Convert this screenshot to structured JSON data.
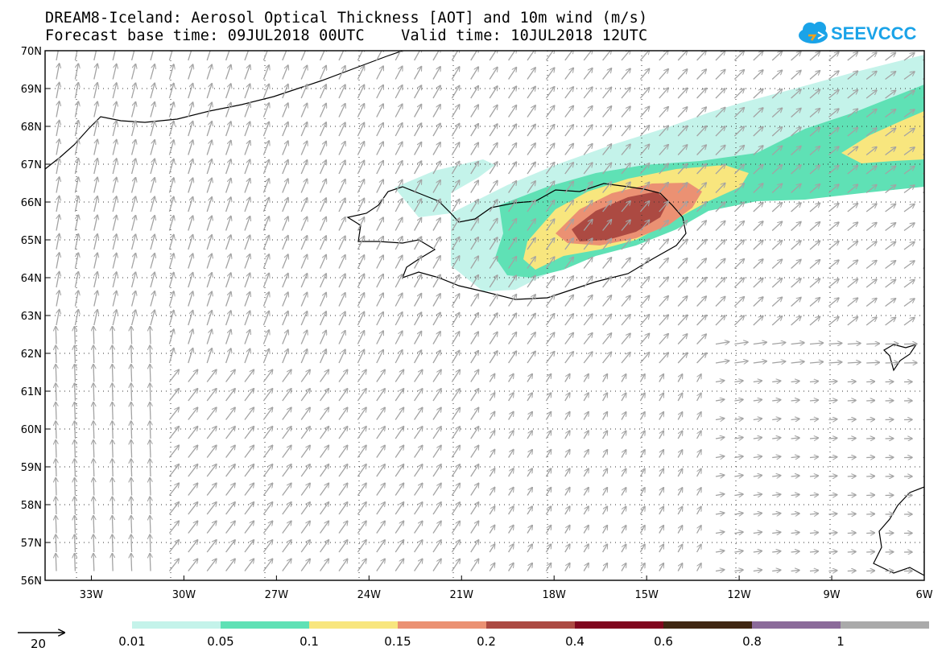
{
  "title": {
    "line1": "DREAM8-Iceland: Aerosol Optical Thickness [AOT] and 10m wind (m/s)",
    "line2": "Forecast base time: 09JUL2018 00UTC    Valid time: 10JUL2018 12UTC"
  },
  "logo": {
    "text": "SEEVCCC",
    "color": "#1aa3e8",
    "icon": "cloud-icon"
  },
  "map": {
    "lon_range": [
      -34.5,
      -6
    ],
    "lat_range": [
      56,
      70
    ],
    "lon_ticks": [
      {
        "value": -33,
        "label": "33W"
      },
      {
        "value": -30,
        "label": "30W"
      },
      {
        "value": -27,
        "label": "27W"
      },
      {
        "value": -24,
        "label": "24W"
      },
      {
        "value": -21,
        "label": "21W"
      },
      {
        "value": -18,
        "label": "18W"
      },
      {
        "value": -15,
        "label": "15W"
      },
      {
        "value": -12,
        "label": "12W"
      },
      {
        "value": -9,
        "label": "9W"
      },
      {
        "value": -6,
        "label": "6W"
      }
    ],
    "lat_ticks": [
      {
        "value": 70,
        "label": "70N"
      },
      {
        "value": 69,
        "label": "69N"
      },
      {
        "value": 68,
        "label": "68N"
      },
      {
        "value": 67,
        "label": "67N"
      },
      {
        "value": 66,
        "label": "66N"
      },
      {
        "value": 65,
        "label": "65N"
      },
      {
        "value": 64,
        "label": "64N"
      },
      {
        "value": 63,
        "label": "63N"
      },
      {
        "value": 62,
        "label": "62N"
      },
      {
        "value": 61,
        "label": "61N"
      },
      {
        "value": 60,
        "label": "60N"
      },
      {
        "value": 59,
        "label": "59N"
      },
      {
        "value": 58,
        "label": "58N"
      },
      {
        "value": 57,
        "label": "57N"
      },
      {
        "value": 56,
        "label": "56N"
      }
    ],
    "grid": "dotted",
    "wind_vector_color": "#a3a3a3"
  },
  "colorbar": {
    "levels": [
      "0.01",
      "0.05",
      "0.1",
      "0.15",
      "0.2",
      "0.4",
      "0.6",
      "0.8",
      "1"
    ],
    "colors": [
      "#c4f3ea",
      "#5fe1b5",
      "#f8e67e",
      "#eb9173",
      "#ac4a42",
      "#80061e",
      "#402712",
      "#8b6a9a",
      "#aaaaaa"
    ]
  },
  "wind_legend": {
    "value": "20",
    "unit_arrow": "arrow-icon"
  }
}
